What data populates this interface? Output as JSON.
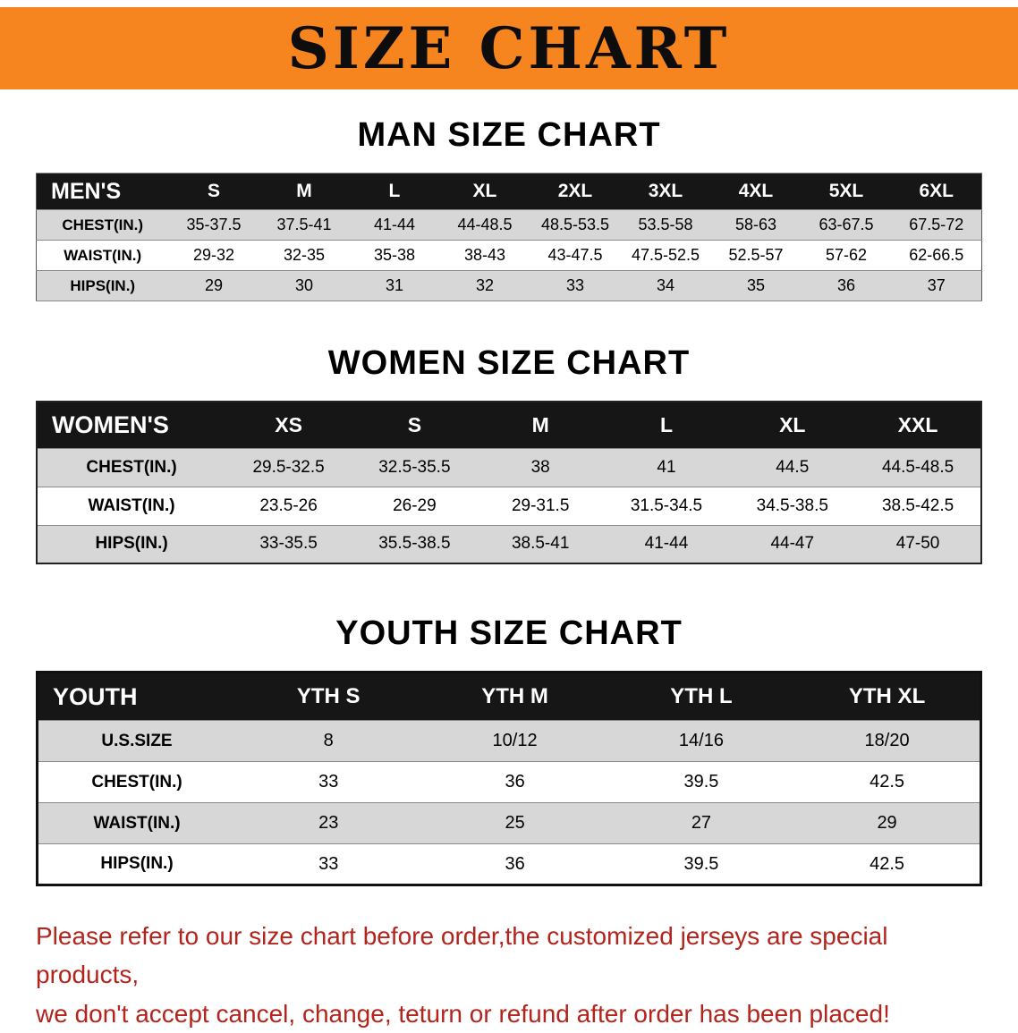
{
  "banner": {
    "title": "SIZE CHART",
    "bg_color": "#f6851f"
  },
  "sections": [
    {
      "heading": "MAN SIZE CHART",
      "table": {
        "header": [
          "MEN'S",
          "S",
          "M",
          "L",
          "XL",
          "2XL",
          "3XL",
          "4XL",
          "5XL",
          "6XL"
        ],
        "rows": [
          [
            "CHEST(IN.)",
            "35-37.5",
            "37.5-41",
            "41-44",
            "44-48.5",
            "48.5-53.5",
            "53.5-58",
            "58-63",
            "63-67.5",
            "67.5-72"
          ],
          [
            "WAIST(IN.)",
            "29-32",
            "32-35",
            "35-38",
            "38-43",
            "43-47.5",
            "47.5-52.5",
            "52.5-57",
            "57-62",
            "62-66.5"
          ],
          [
            "HIPS(IN.)",
            "29",
            "30",
            "31",
            "32",
            "33",
            "34",
            "35",
            "36",
            "37"
          ]
        ]
      }
    },
    {
      "heading": "WOMEN SIZE CHART",
      "table": {
        "header": [
          "WOMEN'S",
          "XS",
          "S",
          "M",
          "L",
          "XL",
          "XXL"
        ],
        "rows": [
          [
            "CHEST(IN.)",
            "29.5-32.5",
            "32.5-35.5",
            "38",
            "41",
            "44.5",
            "44.5-48.5"
          ],
          [
            "WAIST(IN.)",
            "23.5-26",
            "26-29",
            "29-31.5",
            "31.5-34.5",
            "34.5-38.5",
            "38.5-42.5"
          ],
          [
            "HIPS(IN.)",
            "33-35.5",
            "35.5-38.5",
            "38.5-41",
            "41-44",
            "44-47",
            "47-50"
          ]
        ]
      }
    },
    {
      "heading": "YOUTH SIZE CHART",
      "table": {
        "header": [
          "YOUTH",
          "YTH S",
          "YTH M",
          "YTH L",
          "YTH XL"
        ],
        "rows": [
          [
            "U.S.SIZE",
            "8",
            "10/12",
            "14/16",
            "18/20"
          ],
          [
            "CHEST(IN.)",
            "33",
            "36",
            "39.5",
            "42.5"
          ],
          [
            "WAIST(IN.)",
            "23",
            "25",
            "27",
            "29"
          ],
          [
            "HIPS(IN.)",
            "33",
            "36",
            "39.5",
            "42.5"
          ]
        ]
      }
    }
  ],
  "footer": {
    "line1": "Please refer to our size chart before order,the customized jerseys are special products,",
    "line2": "we don't accept cancel, change, teturn or refund after order has been placed!",
    "color": "#b3241c"
  }
}
